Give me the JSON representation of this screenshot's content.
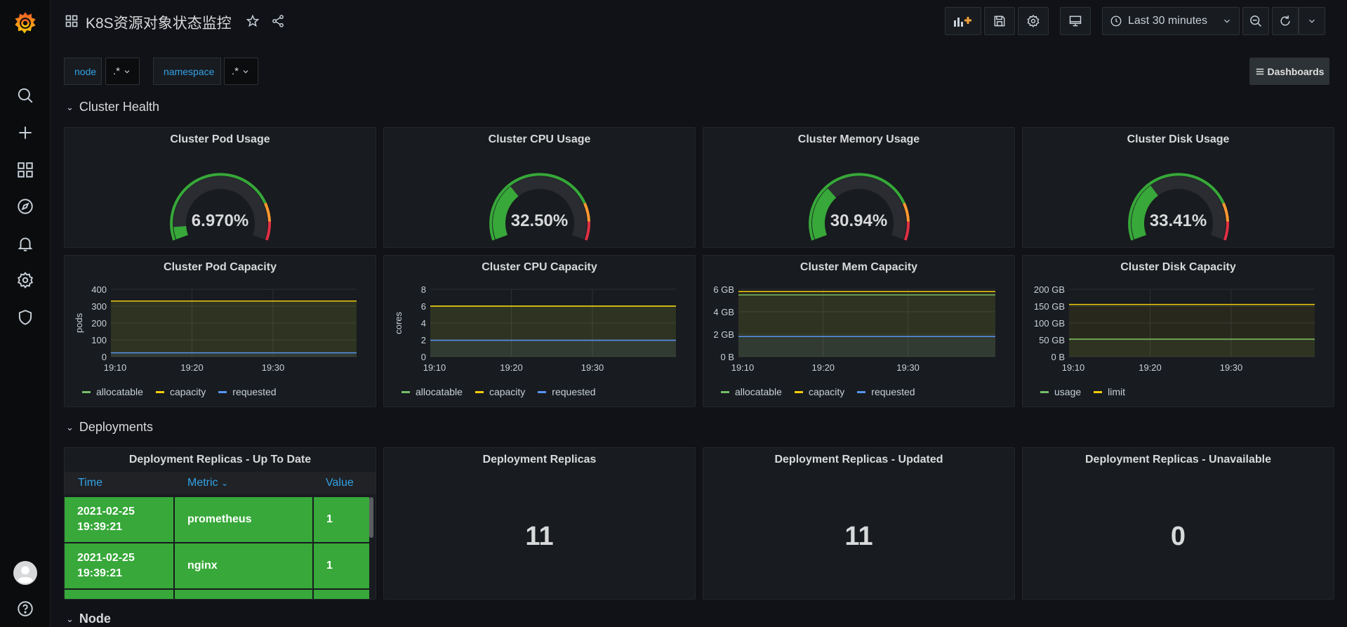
{
  "dashboard": {
    "title": "K8S资源对象状态监控"
  },
  "toolbar": {
    "time_range": "Last 30 minutes"
  },
  "variables": [
    {
      "label": "node",
      "value": ".*"
    },
    {
      "label": "namespace",
      "value": ".*"
    }
  ],
  "dashboards_link": "Dashboards",
  "rows": {
    "cluster_health": "Cluster Health",
    "deployments": "Deployments",
    "node": "Node"
  },
  "gauges": [
    {
      "title": "Cluster Pod Usage",
      "value": "6.970%",
      "percent": 6.97
    },
    {
      "title": "Cluster CPU Usage",
      "value": "32.50%",
      "percent": 32.5
    },
    {
      "title": "Cluster Memory Usage",
      "value": "30.94%",
      "percent": 30.94
    },
    {
      "title": "Cluster Disk Usage",
      "value": "33.41%",
      "percent": 33.41
    }
  ],
  "capacity_charts": [
    {
      "title": "Cluster Pod Capacity",
      "ylabel": "pods",
      "yticks": [
        "400",
        "300",
        "200",
        "100",
        "0"
      ],
      "xticks": [
        "19:10",
        "19:20",
        "19:30"
      ],
      "legend": [
        "allocatable",
        "capacity",
        "requested"
      ]
    },
    {
      "title": "Cluster CPU Capacity",
      "ylabel": "cores",
      "yticks": [
        "8",
        "6",
        "4",
        "2",
        "0"
      ],
      "xticks": [
        "19:10",
        "19:20",
        "19:30"
      ],
      "legend": [
        "allocatable",
        "capacity",
        "requested"
      ]
    },
    {
      "title": "Cluster Mem Capacity",
      "ylabel": "",
      "yticks": [
        "6 GB",
        "4 GB",
        "2 GB",
        "0 B"
      ],
      "xticks": [
        "19:10",
        "19:20",
        "19:30"
      ],
      "legend": [
        "allocatable",
        "capacity",
        "requested"
      ]
    },
    {
      "title": "Cluster Disk Capacity",
      "ylabel": "",
      "yticks": [
        "200 GB",
        "150 GB",
        "100 GB",
        "50 GB",
        "0 B"
      ],
      "xticks": [
        "19:10",
        "19:20",
        "19:30"
      ],
      "legend": [
        "usage",
        "limit"
      ]
    }
  ],
  "chart_data": [
    {
      "type": "line",
      "title": "Cluster Pod Capacity",
      "ylabel": "pods",
      "ylim": [
        0,
        400
      ],
      "x": [
        "19:10",
        "19:20",
        "19:30"
      ],
      "series": [
        {
          "name": "allocatable",
          "values": [
            330,
            330,
            330
          ],
          "color": "#73bf69"
        },
        {
          "name": "capacity",
          "values": [
            330,
            330,
            330
          ],
          "color": "#f2cc0c"
        },
        {
          "name": "requested",
          "values": [
            23,
            23,
            23
          ],
          "color": "#5794f2"
        }
      ]
    },
    {
      "type": "line",
      "title": "Cluster CPU Capacity",
      "ylabel": "cores",
      "ylim": [
        0,
        8
      ],
      "x": [
        "19:10",
        "19:20",
        "19:30"
      ],
      "series": [
        {
          "name": "allocatable",
          "values": [
            6,
            6,
            6
          ],
          "color": "#73bf69"
        },
        {
          "name": "capacity",
          "values": [
            6,
            6,
            6
          ],
          "color": "#f2cc0c"
        },
        {
          "name": "requested",
          "values": [
            1.95,
            1.95,
            1.95
          ],
          "color": "#5794f2"
        }
      ]
    },
    {
      "type": "line",
      "title": "Cluster Mem Capacity",
      "ylim": [
        0,
        6
      ],
      "x": [
        "19:10",
        "19:20",
        "19:30"
      ],
      "series": [
        {
          "name": "allocatable",
          "values": [
            5.5,
            5.5,
            5.5
          ],
          "color": "#73bf69"
        },
        {
          "name": "capacity",
          "values": [
            5.8,
            5.8,
            5.8
          ],
          "color": "#f2cc0c"
        },
        {
          "name": "requested",
          "values": [
            1.8,
            1.8,
            1.8
          ],
          "color": "#5794f2"
        }
      ]
    },
    {
      "type": "line",
      "title": "Cluster Disk Capacity",
      "ylim": [
        0,
        200
      ],
      "x": [
        "19:10",
        "19:20",
        "19:30"
      ],
      "series": [
        {
          "name": "usage",
          "values": [
            52,
            52,
            52
          ],
          "color": "#73bf69"
        },
        {
          "name": "limit",
          "values": [
            155,
            155,
            155
          ],
          "color": "#f2cc0c"
        }
      ]
    }
  ],
  "deployment_table": {
    "title": "Deployment Replicas - Up To Date",
    "columns": [
      "Time",
      "Metric",
      "Value"
    ],
    "rows": [
      {
        "time_date": "2021-02-25",
        "time_clock": "19:39:21",
        "metric": "prometheus",
        "value": "1"
      },
      {
        "time_date": "2021-02-25",
        "time_clock": "19:39:21",
        "metric": "nginx",
        "value": "1"
      }
    ]
  },
  "stats": [
    {
      "title": "Deployment Replicas",
      "value": "11"
    },
    {
      "title": "Deployment Replicas - Updated",
      "value": "11"
    },
    {
      "title": "Deployment Replicas - Unavailable",
      "value": "0"
    }
  ],
  "colors": {
    "background": "#111217",
    "panel": "#181b1f",
    "accent_blue": "#33a2e5",
    "table_green": "#37a839",
    "logo_orange": "#f46800"
  },
  "icons": {
    "sidebar": [
      "grafana-logo-icon",
      "search-icon",
      "plus-icon",
      "dashboards-icon",
      "explore-compass-icon",
      "alert-bell-icon",
      "settings-gear-icon",
      "shield-icon",
      "user-avatar-icon",
      "help-icon"
    ],
    "toolbar": [
      "add-panel-icon",
      "save-icon",
      "settings-icon",
      "tv-mode-icon",
      "clock-icon",
      "zoom-out-icon",
      "refresh-icon",
      "chevron-down-icon"
    ]
  }
}
